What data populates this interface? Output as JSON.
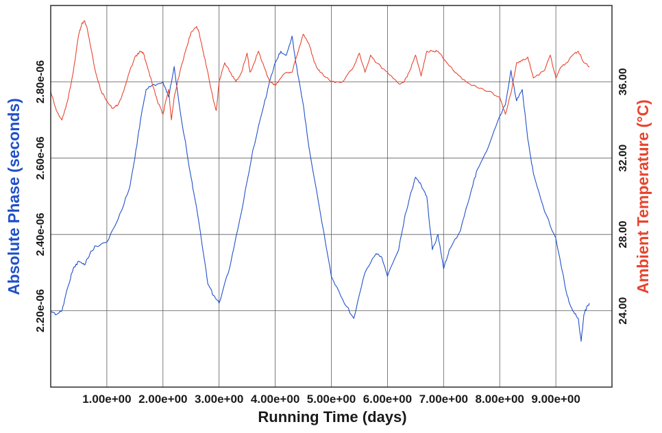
{
  "chart_data": {
    "type": "line",
    "title": "",
    "xlabel": "Running Time (days)",
    "ylabel_left": "Absolute Phase (seconds)",
    "ylabel_right": "Ambient Temperature (°C)",
    "xlim": [
      0,
      10
    ],
    "ylim_left": [
      2e-06,
      3e-06
    ],
    "ylim_right": [
      20.0,
      40.0
    ],
    "grid": true,
    "x_ticks": [
      1,
      2,
      3,
      4,
      5,
      6,
      7,
      8,
      9
    ],
    "x_tick_labels": [
      "1.00e+00",
      "2.00e+00",
      "3.00e+00",
      "4.00e+00",
      "5.00e+00",
      "6.00e+00",
      "7.00e+00",
      "8.00e+00",
      "9.00e+00"
    ],
    "left_ticks": [
      2.2e-06,
      2.4e-06,
      2.6e-06,
      2.8e-06
    ],
    "left_tick_labels": [
      "2.20e-06",
      "2.40e-06",
      "2.60e-06",
      "2.80e-06"
    ],
    "right_ticks": [
      24,
      28,
      32,
      36
    ],
    "right_tick_labels": [
      "24.00",
      "28.00",
      "32.00",
      "36.00"
    ],
    "colors": {
      "phase": "#2050c8",
      "temperature": "#e8442e",
      "grid": "#5a5a5a"
    },
    "series": [
      {
        "axis": "left",
        "x": [
          0.0,
          0.1,
          0.2,
          0.3,
          0.4,
          0.5,
          0.6,
          0.7,
          0.8,
          1.0,
          1.2,
          1.4,
          1.5,
          1.6,
          1.7,
          1.8,
          2.0,
          2.1,
          2.2,
          2.3,
          2.5,
          2.6,
          2.7,
          2.8,
          2.9,
          3.0,
          3.2,
          3.4,
          3.6,
          3.8,
          3.9,
          4.0,
          4.1,
          4.2,
          4.3,
          4.4,
          4.5,
          4.6,
          4.8,
          5.0,
          5.2,
          5.4,
          5.6,
          5.8,
          5.9,
          6.0,
          6.2,
          6.3,
          6.4,
          6.5,
          6.6,
          6.7,
          6.8,
          6.9,
          7.0,
          7.1,
          7.3,
          7.5,
          7.6,
          7.8,
          8.0,
          8.1,
          8.2,
          8.3,
          8.4,
          8.5,
          8.6,
          8.8,
          9.0,
          9.2,
          9.3,
          9.4,
          9.45,
          9.5,
          9.55,
          9.6
        ],
        "values": [
          2.2e-06,
          2.19e-06,
          2.2e-06,
          2.26e-06,
          2.31e-06,
          2.33e-06,
          2.32e-06,
          2.35e-06,
          2.37e-06,
          2.38e-06,
          2.44e-06,
          2.52e-06,
          2.6e-06,
          2.7e-06,
          2.78e-06,
          2.79e-06,
          2.8e-06,
          2.76e-06,
          2.84e-06,
          2.73e-06,
          2.55e-06,
          2.47e-06,
          2.37e-06,
          2.27e-06,
          2.24e-06,
          2.22e-06,
          2.32e-06,
          2.46e-06,
          2.62e-06,
          2.74e-06,
          2.8e-06,
          2.85e-06,
          2.88e-06,
          2.87e-06,
          2.92e-06,
          2.82e-06,
          2.74e-06,
          2.63e-06,
          2.46e-06,
          2.29e-06,
          2.23e-06,
          2.18e-06,
          2.3e-06,
          2.35e-06,
          2.34e-06,
          2.29e-06,
          2.36e-06,
          2.44e-06,
          2.5e-06,
          2.55e-06,
          2.53e-06,
          2.5e-06,
          2.36e-06,
          2.4e-06,
          2.31e-06,
          2.36e-06,
          2.41e-06,
          2.52e-06,
          2.57e-06,
          2.63e-06,
          2.71e-06,
          2.74e-06,
          2.83e-06,
          2.75e-06,
          2.78e-06,
          2.65e-06,
          2.56e-06,
          2.46e-06,
          2.39e-06,
          2.24e-06,
          2.2e-06,
          2.18e-06,
          2.12e-06,
          2.19e-06,
          2.21e-06,
          2.22e-06
        ]
      },
      {
        "axis": "right",
        "x": [
          0.0,
          0.1,
          0.2,
          0.3,
          0.4,
          0.5,
          0.55,
          0.6,
          0.65,
          0.7,
          0.8,
          0.9,
          1.0,
          1.1,
          1.2,
          1.3,
          1.4,
          1.5,
          1.6,
          1.65,
          1.7,
          1.8,
          1.9,
          2.0,
          2.1,
          2.15,
          2.2,
          2.3,
          2.4,
          2.5,
          2.6,
          2.65,
          2.7,
          2.8,
          2.9,
          2.95,
          3.0,
          3.1,
          3.2,
          3.3,
          3.4,
          3.5,
          3.55,
          3.6,
          3.7,
          3.8,
          3.9,
          4.0,
          4.1,
          4.2,
          4.3,
          4.4,
          4.5,
          4.6,
          4.7,
          4.8,
          5.0,
          5.2,
          5.4,
          5.5,
          5.6,
          5.7,
          5.8,
          6.0,
          6.2,
          6.3,
          6.4,
          6.5,
          6.6,
          6.7,
          6.8,
          6.9,
          7.0,
          7.2,
          7.4,
          7.6,
          7.8,
          8.0,
          8.1,
          8.2,
          8.3,
          8.4,
          8.5,
          8.6,
          8.8,
          8.9,
          9.0,
          9.1,
          9.2,
          9.3,
          9.4,
          9.5,
          9.6
        ],
        "values": [
          35.5,
          34.5,
          34.0,
          35.0,
          36.5,
          38.5,
          39.0,
          39.2,
          38.8,
          38.0,
          36.5,
          35.5,
          35.0,
          34.6,
          34.8,
          35.5,
          36.5,
          37.3,
          37.6,
          37.5,
          37.0,
          36.0,
          35.0,
          34.3,
          35.6,
          34.0,
          35.2,
          36.5,
          37.6,
          38.6,
          38.9,
          38.5,
          37.8,
          36.5,
          35.0,
          34.5,
          36.0,
          37.0,
          36.5,
          36.0,
          36.5,
          37.5,
          36.5,
          36.8,
          37.6,
          36.8,
          36.0,
          35.8,
          36.2,
          36.5,
          36.5,
          37.5,
          38.5,
          38.0,
          37.0,
          36.5,
          36.0,
          36.0,
          36.8,
          37.5,
          36.5,
          37.4,
          37.0,
          36.5,
          35.9,
          36.0,
          36.6,
          37.4,
          36.3,
          37.6,
          37.6,
          37.6,
          37.2,
          36.5,
          36.0,
          35.7,
          35.5,
          35.2,
          34.3,
          35.4,
          37.0,
          37.1,
          37.3,
          36.2,
          36.6,
          37.4,
          36.2,
          36.8,
          37.0,
          37.4,
          37.6,
          37.0,
          36.8
        ]
      }
    ]
  }
}
